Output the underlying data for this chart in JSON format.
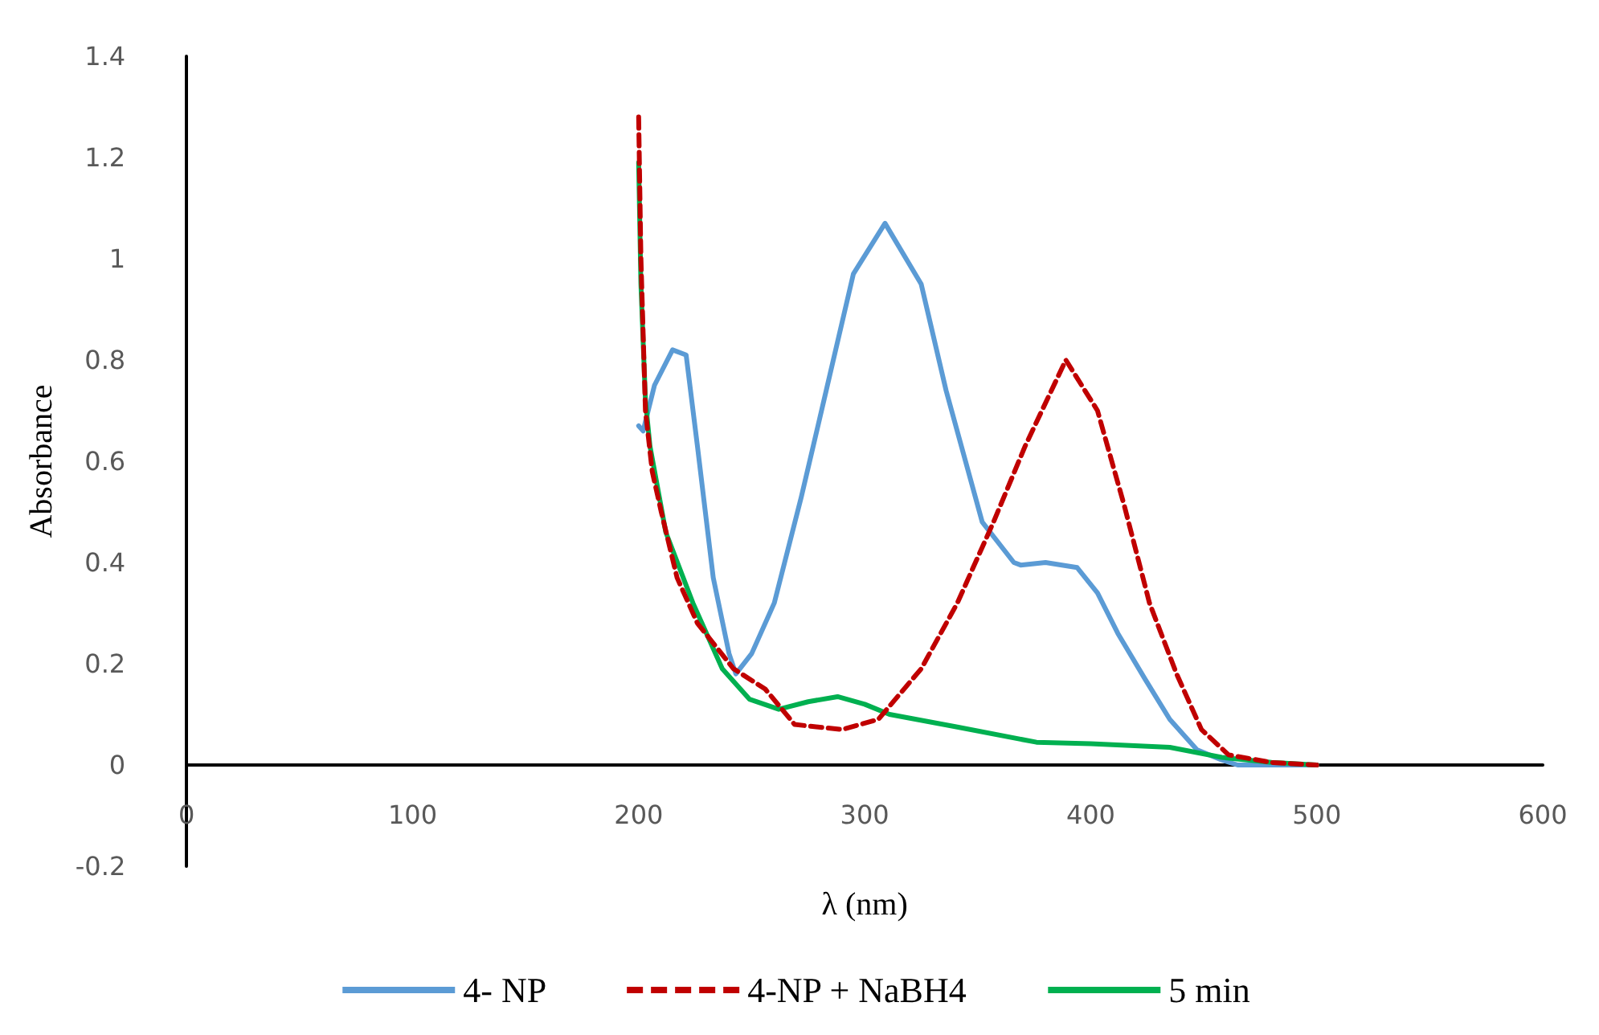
{
  "chart_data": {
    "type": "line",
    "xlabel": "λ (nm)",
    "ylabel": "Absorbance",
    "xlim": [
      0,
      600
    ],
    "xticks": [
      0,
      100,
      200,
      300,
      400,
      500,
      600
    ],
    "ylim": [
      -0.2,
      1.4
    ],
    "yticks": [
      -0.2,
      0,
      0.2,
      0.4,
      0.6,
      0.8,
      1,
      1.2,
      1.4
    ],
    "grid": false,
    "legend": "bottom",
    "marker": "none",
    "series": [
      {
        "name": "4- NP",
        "color": "#5b9bd5",
        "line_style": "solid",
        "x": [
          200,
          202,
          207,
          215,
          221,
          226,
          233,
          240,
          243,
          250,
          260,
          272,
          283,
          295,
          309,
          325,
          336,
          352,
          366,
          369,
          380,
          394,
          403,
          412,
          424,
          435,
          447,
          458,
          465,
          480,
          500
        ],
        "values": [
          0.67,
          0.66,
          0.75,
          0.82,
          0.81,
          0.63,
          0.37,
          0.22,
          0.18,
          0.22,
          0.32,
          0.53,
          0.74,
          0.97,
          1.07,
          0.95,
          0.74,
          0.48,
          0.4,
          0.395,
          0.4,
          0.39,
          0.34,
          0.26,
          0.17,
          0.09,
          0.03,
          0.01,
          0,
          0,
          0
        ]
      },
      {
        "name": "4-NP + NaBH4",
        "color": "#c00000",
        "line_style": "dashed",
        "x": [
          200,
          201,
          203,
          206,
          210,
          217,
          226,
          242,
          256,
          269,
          290,
          306,
          325,
          341,
          357,
          371,
          389,
          403,
          415,
          426,
          438,
          449,
          461,
          480,
          500
        ],
        "values": [
          1.28,
          1.0,
          0.7,
          0.58,
          0.5,
          0.37,
          0.28,
          0.19,
          0.15,
          0.08,
          0.07,
          0.09,
          0.19,
          0.32,
          0.48,
          0.63,
          0.8,
          0.7,
          0.51,
          0.32,
          0.18,
          0.07,
          0.02,
          0.005,
          0
        ]
      },
      {
        "name": "5 min",
        "color": "#00b050",
        "line_style": "solid",
        "x": [
          200,
          201,
          203,
          205,
          212,
          224,
          237,
          249,
          262,
          275,
          288,
          300,
          311,
          341,
          376,
          400,
          435,
          458,
          480,
          500
        ],
        "values": [
          1.19,
          0.95,
          0.72,
          0.63,
          0.46,
          0.32,
          0.19,
          0.13,
          0.11,
          0.125,
          0.135,
          0.12,
          0.1,
          0.075,
          0.045,
          0.042,
          0.035,
          0.015,
          0.005,
          0
        ]
      }
    ]
  }
}
